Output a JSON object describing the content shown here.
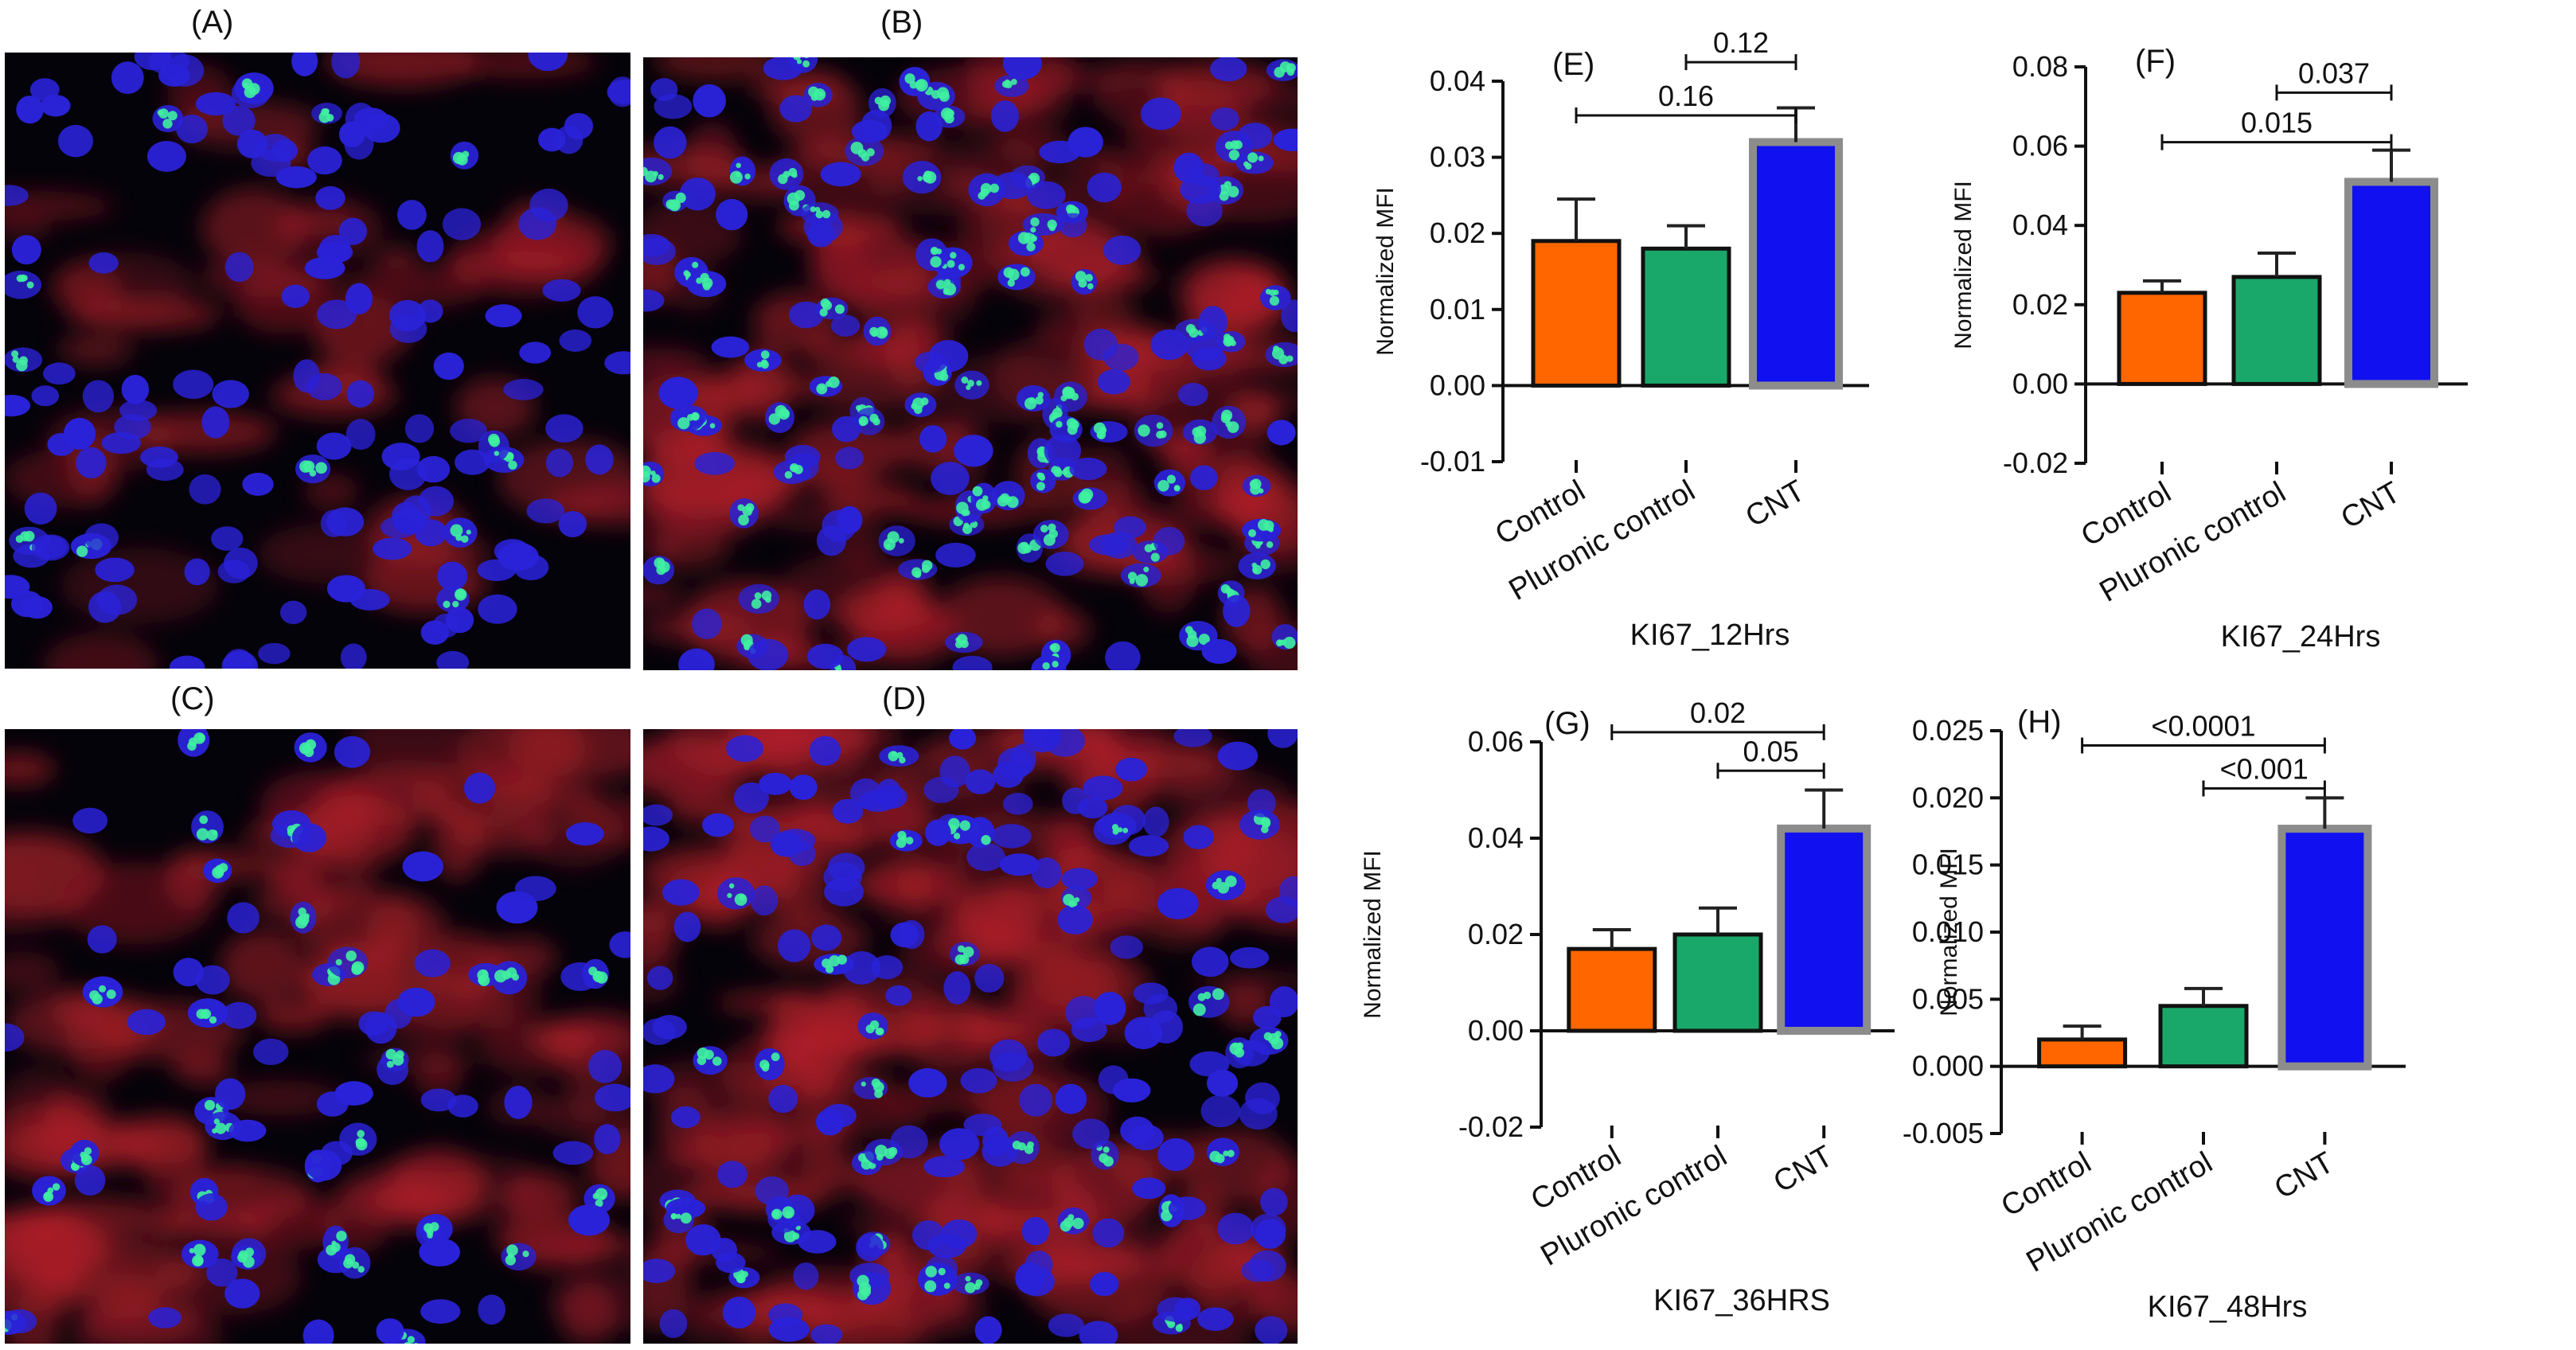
{
  "micrographs": [
    {
      "label": "(A)"
    },
    {
      "label": "(B)"
    },
    {
      "label": "(C)"
    },
    {
      "label": "(D)"
    }
  ],
  "colors": {
    "Control": "#ff6600",
    "Pluronic control": "#1aa86a",
    "CNT": "#1010f0",
    "cnt_outline": "#8c8c8c",
    "nucleus": "#2a22d8",
    "ki67": "#3ff0a0",
    "cytoplasm": "#b3202a"
  },
  "chart_data": [
    {
      "type": "bar",
      "panel": "(E)",
      "categories": [
        "Control",
        "Pluronic control",
        "CNT"
      ],
      "values": [
        0.019,
        0.018,
        0.032
      ],
      "errors": [
        0.0055,
        0.003,
        0.0045
      ],
      "xlabel": "KI67_12Hrs",
      "ylabel": "Normalized MFI",
      "ylim": [
        -0.01,
        0.04
      ],
      "yticks": [
        "-0.01",
        "0.00",
        "0.01",
        "0.02",
        "0.03",
        "0.04"
      ],
      "annotations": [
        {
          "from": 1,
          "to": 2,
          "label": "0.12",
          "level": 0.0425
        },
        {
          "from": 0,
          "to": 2,
          "label": "0.16",
          "level": 0.0355
        }
      ]
    },
    {
      "type": "bar",
      "panel": "(F)",
      "categories": [
        "Control",
        "Pluronic control",
        "CNT"
      ],
      "values": [
        0.023,
        0.027,
        0.051
      ],
      "errors": [
        0.003,
        0.006,
        0.008
      ],
      "xlabel": "KI67_24Hrs",
      "ylabel": "Normalized MFI",
      "ylim": [
        -0.02,
        0.08
      ],
      "yticks": [
        "-0.02",
        "0.00",
        "0.02",
        "0.04",
        "0.06",
        "0.08"
      ],
      "annotations": [
        {
          "from": 1,
          "to": 2,
          "label": "0.037",
          "level": 0.0735
        },
        {
          "from": 0,
          "to": 2,
          "label": "0.015",
          "level": 0.061
        }
      ]
    },
    {
      "type": "bar",
      "panel": "(G)",
      "categories": [
        "Control",
        "Pluronic control",
        "CNT"
      ],
      "values": [
        0.017,
        0.02,
        0.042
      ],
      "errors": [
        0.004,
        0.0055,
        0.008
      ],
      "xlabel": "KI67_36HRS",
      "ylabel": "Normalized MFI",
      "ylim": [
        -0.02,
        0.06
      ],
      "yticks": [
        "-0.02",
        "0.00",
        "0.02",
        "0.04",
        "0.06"
      ],
      "annotations": [
        {
          "from": 0,
          "to": 2,
          "label": "0.02",
          "level": 0.062
        },
        {
          "from": 1,
          "to": 2,
          "label": "0.05",
          "level": 0.054
        }
      ]
    },
    {
      "type": "bar",
      "panel": "(H)",
      "categories": [
        "Control",
        "Pluronic control",
        "CNT"
      ],
      "values": [
        0.002,
        0.0045,
        0.0177
      ],
      "errors": [
        0.001,
        0.0013,
        0.0023
      ],
      "xlabel": "KI67_48Hrs",
      "ylabel": "Normalized MFI",
      "ylim": [
        -0.005,
        0.025
      ],
      "yticks": [
        "-0.005",
        "0.000",
        "0.005",
        "0.010",
        "0.015",
        "0.020",
        "0.025"
      ],
      "annotations": [
        {
          "from": 0,
          "to": 2,
          "label": "<0.0001",
          "level": 0.0239
        },
        {
          "from": 1,
          "to": 2,
          "label": "<0.001",
          "level": 0.0207
        }
      ]
    }
  ]
}
